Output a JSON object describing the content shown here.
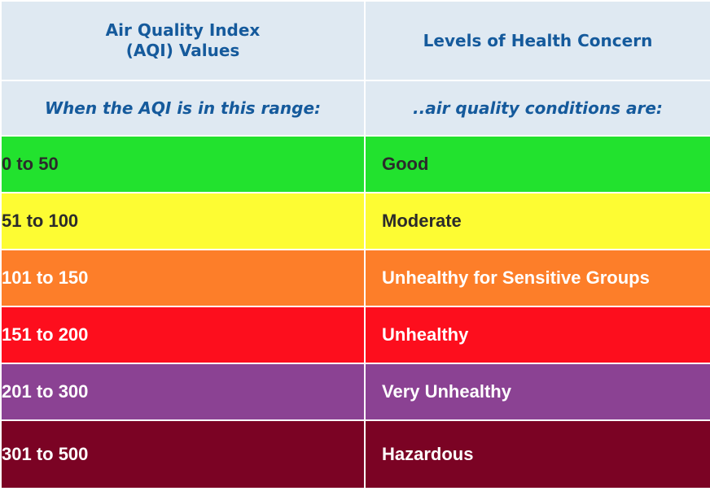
{
  "header": {
    "col1_line1": "Air Quality Index",
    "col1_line2": "(AQI) Values",
    "col2": "Levels of Health Concern"
  },
  "subheader": {
    "col1": "When the AQI is in this range:",
    "col2": "..air quality conditions are:"
  },
  "rows": [
    {
      "range": "0 to 50",
      "level": "Good",
      "color": "#22e22e"
    },
    {
      "range": "51 to 100",
      "level": "Moderate",
      "color": "#fdfc33"
    },
    {
      "range": "101 to 150",
      "level": "Unhealthy for Sensitive Groups",
      "color": "#fd7e29"
    },
    {
      "range": "151 to 200",
      "level": "Unhealthy",
      "color": "#fd0e1d"
    },
    {
      "range": "201 to 300",
      "level": "Very Unhealthy",
      "color": "#8b4293"
    },
    {
      "range": "301 to 500",
      "level": "Hazardous",
      "color": "#7b0324"
    }
  ],
  "colors": {
    "header_bg": "#dfe9f2",
    "header_text": "#155a9c"
  }
}
